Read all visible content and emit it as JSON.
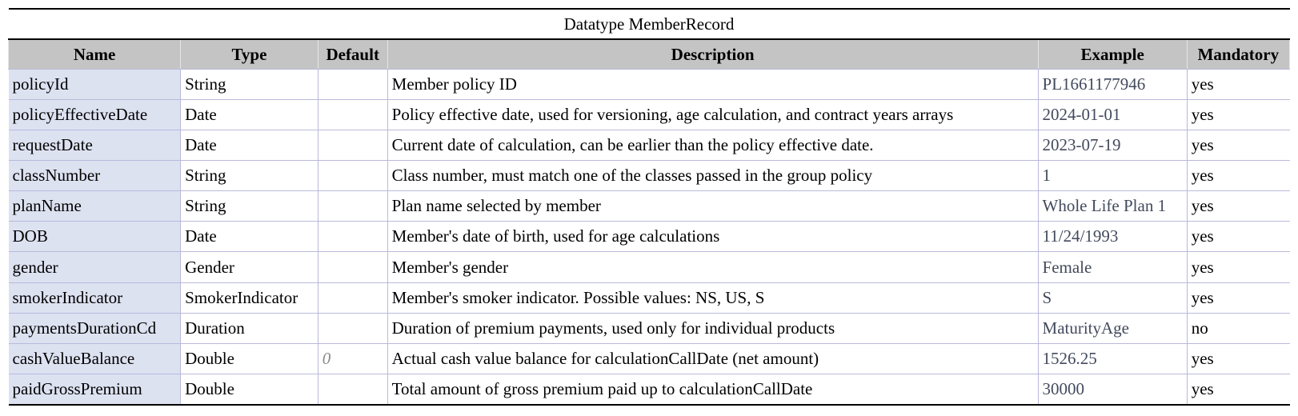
{
  "title": "Datatype MemberRecord",
  "columns": [
    "Name",
    "Type",
    "Default",
    "Description",
    "Example",
    "Mandatory"
  ],
  "rows": [
    {
      "name": "policyId",
      "type": "String",
      "default": "",
      "description": "Member policy ID",
      "example": "PL1661177946",
      "mandatory": "yes"
    },
    {
      "name": "policyEffectiveDate",
      "type": "Date",
      "default": "",
      "description": "Policy effective date, used for versioning, age calculation, and contract years arrays",
      "example": "2024-01-01",
      "mandatory": "yes"
    },
    {
      "name": "requestDate",
      "type": "Date",
      "default": "",
      "description": "Current date of calculation, can be earlier than the policy effective date.",
      "example": "2023-07-19",
      "mandatory": "yes"
    },
    {
      "name": "classNumber",
      "type": "String",
      "default": "",
      "description": "Class number, must match one of the classes passed in the group policy",
      "example": "1",
      "mandatory": "yes"
    },
    {
      "name": "planName",
      "type": "String",
      "default": "",
      "description": "Plan name selected by member",
      "example": "Whole Life Plan 1",
      "mandatory": "yes"
    },
    {
      "name": "DOB",
      "type": "Date",
      "default": "",
      "description": "Member's date of birth, used for age calculations",
      "example": "11/24/1993",
      "mandatory": "yes"
    },
    {
      "name": "gender",
      "type": "Gender",
      "default": "",
      "description": "Member's gender",
      "example": "Female",
      "mandatory": "yes"
    },
    {
      "name": "smokerIndicator",
      "type": "SmokerIndicator",
      "default": "",
      "description": "Member's smoker indicator. Possible values: NS, US, S",
      "example": "S",
      "mandatory": "yes"
    },
    {
      "name": "paymentsDurationCd",
      "type": "Duration",
      "default": "",
      "description": "Duration of premium payments, used only for individual products",
      "example": "MaturityAge",
      "mandatory": "no"
    },
    {
      "name": "cashValueBalance",
      "type": "Double",
      "default": "0",
      "description": "Actual cash value balance for calculationCallDate (net amount)",
      "example": "1526.25",
      "mandatory": "yes"
    },
    {
      "name": "paidGrossPremium",
      "type": "Double",
      "default": "",
      "description": "Total amount of gross premium paid up to calculationCallDate",
      "example": "30000",
      "mandatory": "yes"
    }
  ]
}
